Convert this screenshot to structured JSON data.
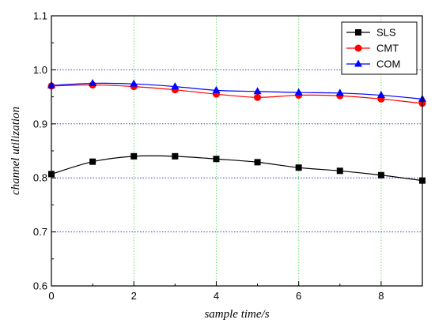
{
  "chart_data": {
    "type": "line",
    "title": "",
    "xlabel": "sample time/s",
    "ylabel": "channel utilization",
    "xlim": [
      0,
      9
    ],
    "ylim": [
      0.6,
      1.1
    ],
    "x_ticks": [
      0,
      2,
      4,
      6,
      8
    ],
    "x_tick_labels": [
      "0",
      "2",
      "4",
      "6",
      "8"
    ],
    "y_ticks": [
      0.6,
      0.7,
      0.8,
      0.9,
      1.0,
      1.1
    ],
    "y_tick_labels": [
      "0.6",
      "0.7",
      "0.8",
      "0.9",
      "1.0",
      "1.1"
    ],
    "grid": true,
    "legend_position": "top-right",
    "x": [
      0,
      1,
      2,
      3,
      4,
      5,
      6,
      7,
      8,
      9
    ],
    "series": [
      {
        "name": "SLS",
        "color": "#000000",
        "marker": "square",
        "values": [
          0.807,
          0.83,
          0.84,
          0.84,
          0.835,
          0.829,
          0.819,
          0.813,
          0.805,
          0.795
        ]
      },
      {
        "name": "CMT",
        "color": "#ff0000",
        "marker": "circle",
        "values": [
          0.97,
          0.972,
          0.969,
          0.963,
          0.955,
          0.949,
          0.953,
          0.952,
          0.946,
          0.938
        ]
      },
      {
        "name": "COM",
        "color": "#0000ff",
        "marker": "triangle",
        "values": [
          0.971,
          0.975,
          0.974,
          0.969,
          0.962,
          0.96,
          0.958,
          0.957,
          0.953,
          0.946
        ]
      }
    ]
  }
}
